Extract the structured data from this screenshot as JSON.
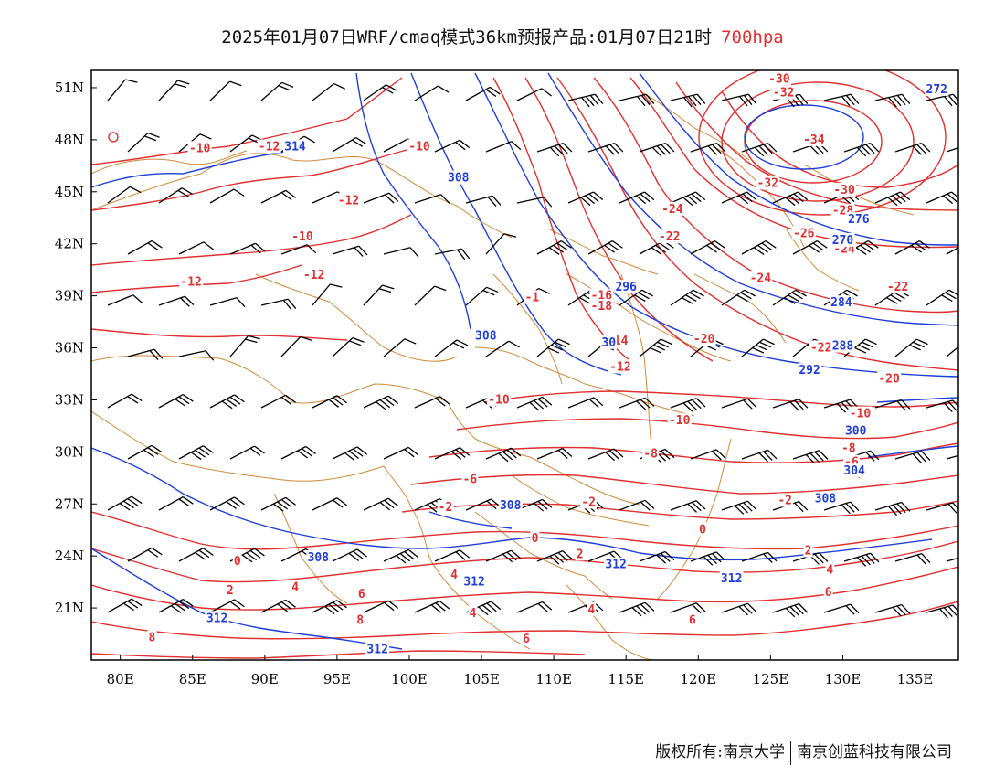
{
  "title": {
    "main": "2025年01月07日WRF/cmaq模式36km预报产品:01月07日21时",
    "level": "700hpa",
    "level_color": "#e0302f"
  },
  "axes": {
    "lon_ticks": [
      "80E",
      "85E",
      "90E",
      "95E",
      "100E",
      "105E",
      "110E",
      "115E",
      "120E",
      "125E",
      "130E",
      "135E"
    ],
    "lon_values": [
      80,
      85,
      90,
      95,
      100,
      105,
      110,
      115,
      120,
      125,
      130,
      135
    ],
    "lat_ticks": [
      "21N",
      "24N",
      "27N",
      "30N",
      "33N",
      "36N",
      "39N",
      "42N",
      "45N",
      "48N",
      "51N"
    ],
    "lat_values": [
      21,
      24,
      27,
      30,
      33,
      36,
      39,
      42,
      45,
      48,
      51
    ],
    "lon_range": [
      78,
      138
    ],
    "lat_range": [
      18,
      52
    ]
  },
  "colors": {
    "temperature": "#e0302f",
    "height": "#1f3fd6",
    "boundary": "#d08a3a",
    "wind": "#000000"
  },
  "temperature_labels": [
    {
      "text": "-10",
      "lon": 85.5,
      "lat": 47.5
    },
    {
      "text": "-12",
      "lon": 90.3,
      "lat": 47.6
    },
    {
      "text": "-10",
      "lon": 100.7,
      "lat": 47.6
    },
    {
      "text": "-12",
      "lon": 95.8,
      "lat": 44.5
    },
    {
      "text": "-10",
      "lon": 92.6,
      "lat": 42.4
    },
    {
      "text": "-12",
      "lon": 84.9,
      "lat": 39.8
    },
    {
      "text": "-12",
      "lon": 93.4,
      "lat": 40.2
    },
    {
      "text": "-1",
      "lon": 108.5,
      "lat": 38.9
    },
    {
      "text": "-16",
      "lon": 113.3,
      "lat": 39.0
    },
    {
      "text": "-18",
      "lon": 113.3,
      "lat": 38.4
    },
    {
      "text": "-14",
      "lon": 114.4,
      "lat": 36.4
    },
    {
      "text": "-12",
      "lon": 114.6,
      "lat": 34.9
    },
    {
      "text": "-10",
      "lon": 106.2,
      "lat": 33.0
    },
    {
      "text": "-10",
      "lon": 118.7,
      "lat": 31.8
    },
    {
      "text": "-8",
      "lon": 116.7,
      "lat": 29.9
    },
    {
      "text": "-6",
      "lon": 104.2,
      "lat": 28.4
    },
    {
      "text": "-2",
      "lon": 102.5,
      "lat": 26.8
    },
    {
      "text": "-2",
      "lon": 112.4,
      "lat": 27.1
    },
    {
      "text": "-2",
      "lon": 126.0,
      "lat": 27.2
    },
    {
      "text": "0",
      "lon": 108.7,
      "lat": 25.0
    },
    {
      "text": "0",
      "lon": 120.3,
      "lat": 25.5
    },
    {
      "text": "0",
      "lon": 88.1,
      "lat": 23.7
    },
    {
      "text": "2",
      "lon": 111.8,
      "lat": 24.1
    },
    {
      "text": "2",
      "lon": 127.6,
      "lat": 24.3
    },
    {
      "text": "2",
      "lon": 87.6,
      "lat": 22.0
    },
    {
      "text": "4",
      "lon": 92.1,
      "lat": 22.2
    },
    {
      "text": "4",
      "lon": 103.1,
      "lat": 22.9
    },
    {
      "text": "4",
      "lon": 104.4,
      "lat": 20.7
    },
    {
      "text": "4",
      "lon": 112.6,
      "lat": 20.9
    },
    {
      "text": "4",
      "lon": 129.1,
      "lat": 23.2
    },
    {
      "text": "6",
      "lon": 96.7,
      "lat": 21.8
    },
    {
      "text": "6",
      "lon": 129.0,
      "lat": 21.9
    },
    {
      "text": "6",
      "lon": 119.6,
      "lat": 20.3
    },
    {
      "text": "6",
      "lon": 108.1,
      "lat": 19.2
    },
    {
      "text": "8",
      "lon": 96.6,
      "lat": 20.3
    },
    {
      "text": "8",
      "lon": 82.2,
      "lat": 19.3
    },
    {
      "text": "-30",
      "lon": 125.6,
      "lat": 51.5
    },
    {
      "text": "-32",
      "lon": 125.9,
      "lat": 50.7
    },
    {
      "text": "-34",
      "lon": 128.0,
      "lat": 48.0
    },
    {
      "text": "-32",
      "lon": 124.8,
      "lat": 45.5
    },
    {
      "text": "-30",
      "lon": 130.1,
      "lat": 45.1
    },
    {
      "text": "-28",
      "lon": 130.0,
      "lat": 43.9
    },
    {
      "text": "-24",
      "lon": 118.2,
      "lat": 44.0
    },
    {
      "text": "-26",
      "lon": 127.3,
      "lat": 42.6
    },
    {
      "text": "-22",
      "lon": 118.0,
      "lat": 42.4
    },
    {
      "text": "-24",
      "lon": 130.1,
      "lat": 41.7
    },
    {
      "text": "-24",
      "lon": 124.3,
      "lat": 40.0
    },
    {
      "text": "-22",
      "lon": 133.8,
      "lat": 39.5
    },
    {
      "text": "-20",
      "lon": 120.4,
      "lat": 36.5
    },
    {
      "text": "-22",
      "lon": 128.5,
      "lat": 36.0
    },
    {
      "text": "-20",
      "lon": 133.2,
      "lat": 34.2
    },
    {
      "text": "-10",
      "lon": 131.2,
      "lat": 32.2
    },
    {
      "text": "-8",
      "lon": 130.4,
      "lat": 30.2
    },
    {
      "text": "-6",
      "lon": 130.6,
      "lat": 29.4
    },
    {
      "text": "-4",
      "lon": 130.8,
      "lat": 28.7
    }
  ],
  "height_labels": [
    {
      "text": "314",
      "lon": 92.1,
      "lat": 47.6
    },
    {
      "text": "308",
      "lon": 103.4,
      "lat": 45.8
    },
    {
      "text": "296",
      "lon": 115.0,
      "lat": 39.5
    },
    {
      "text": "308",
      "lon": 105.3,
      "lat": 36.7
    },
    {
      "text": "30",
      "lon": 113.8,
      "lat": 36.3
    },
    {
      "text": "276",
      "lon": 131.1,
      "lat": 43.4
    },
    {
      "text": "270",
      "lon": 130.0,
      "lat": 42.2
    },
    {
      "text": "272",
      "lon": 136.5,
      "lat": 50.9
    },
    {
      "text": "284",
      "lon": 129.9,
      "lat": 38.6
    },
    {
      "text": "288",
      "lon": 130.0,
      "lat": 36.1
    },
    {
      "text": "292",
      "lon": 127.7,
      "lat": 34.7
    },
    {
      "text": "300",
      "lon": 130.9,
      "lat": 31.2
    },
    {
      "text": "304",
      "lon": 130.8,
      "lat": 28.9
    },
    {
      "text": "308",
      "lon": 128.8,
      "lat": 27.3
    },
    {
      "text": "308",
      "lon": 107.0,
      "lat": 26.9
    },
    {
      "text": "308",
      "lon": 93.7,
      "lat": 23.9
    },
    {
      "text": "312",
      "lon": 114.3,
      "lat": 23.5
    },
    {
      "text": "312",
      "lon": 122.3,
      "lat": 22.7
    },
    {
      "text": "312",
      "lon": 104.5,
      "lat": 22.5
    },
    {
      "text": "312",
      "lon": 86.7,
      "lat": 20.4
    },
    {
      "text": "312",
      "lon": 97.8,
      "lat": 18.6
    }
  ],
  "footer": {
    "owner": "版权所有:南京大学",
    "partner": "南京创蓝科技有限公司"
  }
}
